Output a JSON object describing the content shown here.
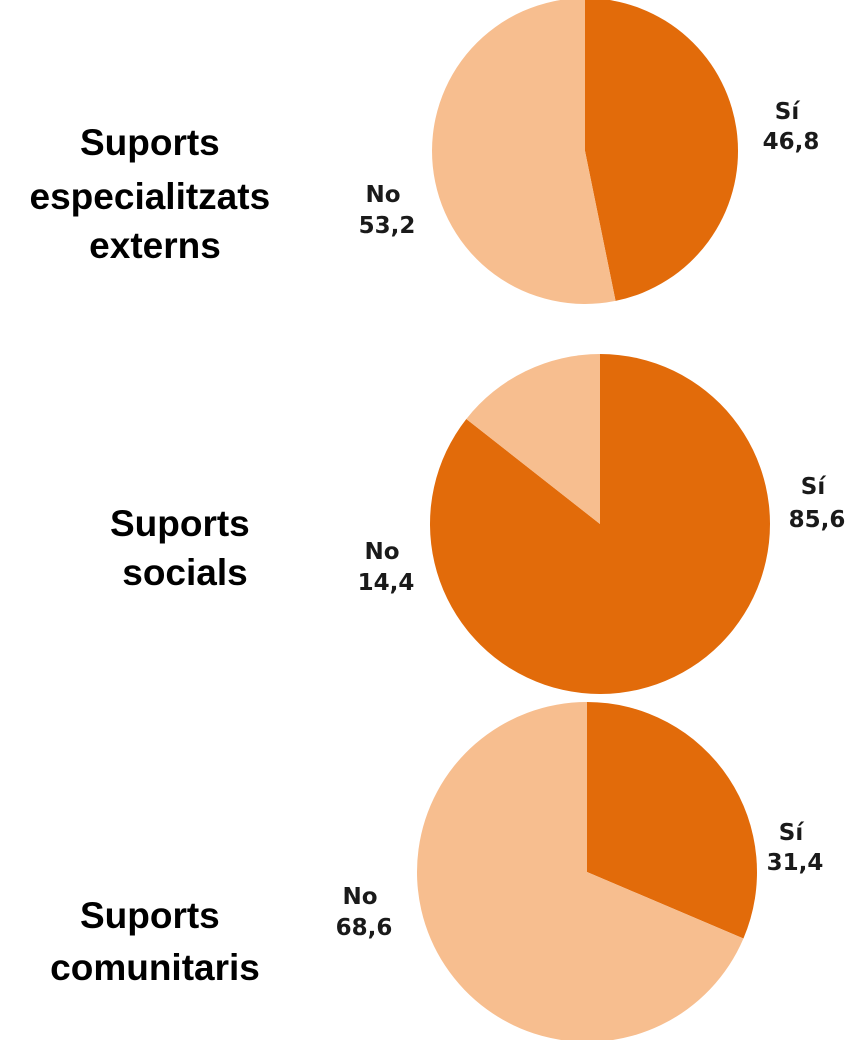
{
  "colors": {
    "si": "#E26B0A",
    "no": "#F7BE8F",
    "background": "#FFFFFF"
  },
  "chart_data": [
    {
      "type": "pie",
      "title_lines": [
        "Suports",
        "especialitzats",
        "externs"
      ],
      "slices": [
        {
          "category": "Sí",
          "value_text": "46,8",
          "value": 46.8
        },
        {
          "category": "No",
          "value_text": "53,2",
          "value": 53.2
        }
      ]
    },
    {
      "type": "pie",
      "title_lines": [
        "Suports",
        "socials"
      ],
      "slices": [
        {
          "category": "Sí",
          "value_text": "85,6",
          "value": 85.6
        },
        {
          "category": "No",
          "value_text": "14,4",
          "value": 14.4
        }
      ]
    },
    {
      "type": "pie",
      "title_lines": [
        "Suports",
        "comunitaris"
      ],
      "slices": [
        {
          "category": "Sí",
          "value_text": "31,4",
          "value": 31.4
        },
        {
          "category": "No",
          "value_text": "68,6",
          "value": 68.6
        }
      ]
    }
  ]
}
